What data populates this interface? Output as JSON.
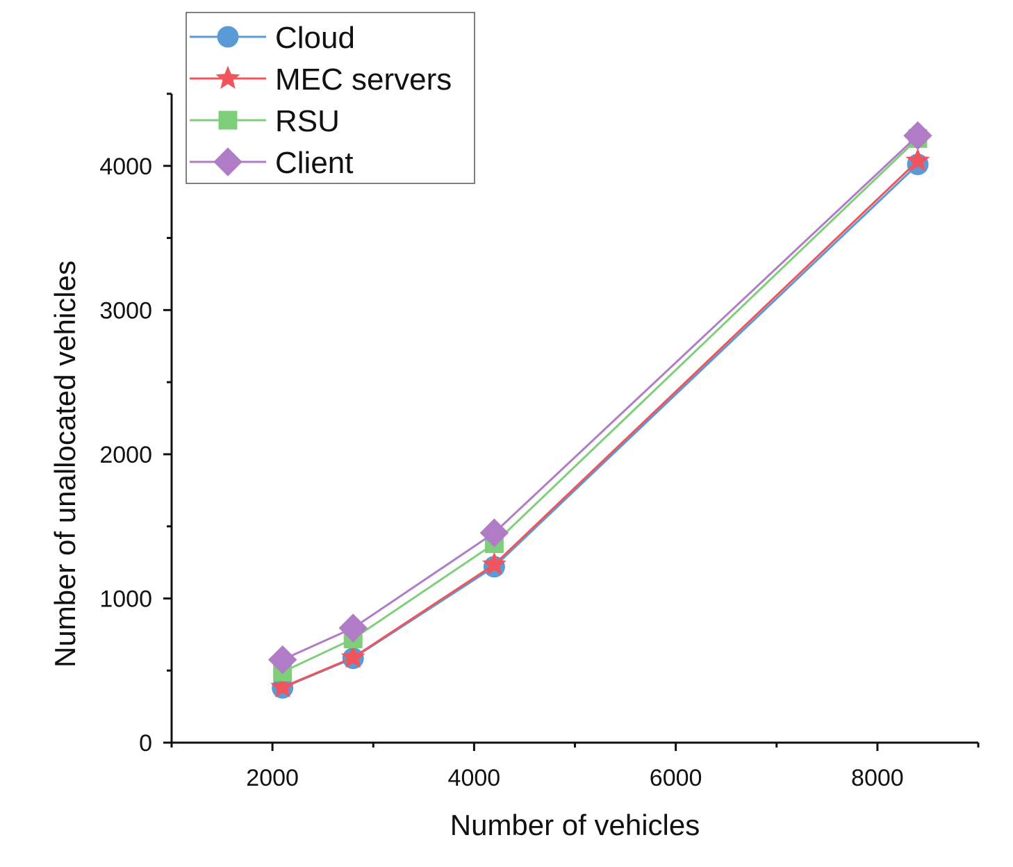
{
  "chart_data": {
    "type": "line",
    "title": "",
    "xlabel": "Number of vehicles",
    "ylabel": "Number of unallocated vehicles",
    "xlim": [
      1000,
      9000
    ],
    "ylim": [
      0,
      4500
    ],
    "x_ticks": [
      2000,
      4000,
      6000,
      8000
    ],
    "x_tick_labels": [
      "2000",
      "4000",
      "6000",
      "8000"
    ],
    "x_minor_ticks": [
      1000,
      3000,
      5000,
      7000,
      9000
    ],
    "y_ticks": [
      0,
      1000,
      2000,
      3000,
      4000
    ],
    "y_tick_labels": [
      "0",
      "1000",
      "2000",
      "3000",
      "4000"
    ],
    "y_minor_ticks": [
      500,
      1500,
      2500,
      3500,
      4500
    ],
    "grid": false,
    "legend_position": "top-left",
    "x": [
      2100,
      2800,
      4200,
      8400
    ],
    "series": [
      {
        "name": "Cloud",
        "marker": "circle",
        "color": "#5b9bd5",
        "values": [
          380,
          585,
          1220,
          4010
        ]
      },
      {
        "name": "MEC servers",
        "marker": "star",
        "color": "#f0545c",
        "values": [
          385,
          590,
          1235,
          4035
        ]
      },
      {
        "name": "RSU",
        "marker": "square",
        "color": "#7fce7a",
        "values": [
          490,
          720,
          1380,
          4190
        ]
      },
      {
        "name": "Client",
        "marker": "diamond",
        "color": "#b07cc6",
        "values": [
          575,
          795,
          1455,
          4210
        ]
      }
    ]
  }
}
